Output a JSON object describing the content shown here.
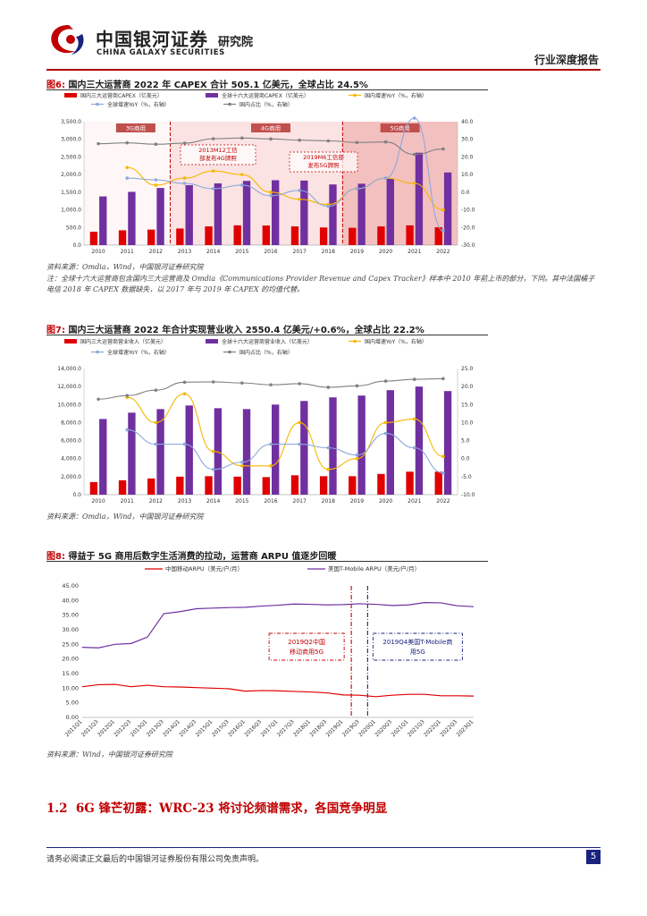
{
  "header": {
    "logo_cn": "中国银河证券",
    "logo_en": "CHINA GALAXY SECURITIES",
    "institute": "研究院",
    "report_type": "行业深度报告"
  },
  "colors": {
    "red": "#e00000",
    "purple": "#7030a0",
    "orange": "#f5b800",
    "blue": "#8fa8dc",
    "grey": "#808080",
    "brand_red": "#c00000",
    "navy": "#1a237e"
  },
  "fig6": {
    "prefix": "图6:",
    "title": "国内三大运营商 2022 年 CAPEX 合计 505.1 亿美元，全球占比 24.5%",
    "source": "资料来源：Omdia，Wind，中国银河证券研究院",
    "note": "注：全球十六大运营商包含国内三大运营商及 Omdia《Communications Provider Revenue and Capex Tracker》样本中 2010 年前上市的部分，下同。其中法国橘子电信 2018 年 CAPEX 数据缺失，以 2017 年与 2019 年 CAPEX 的均值代替。"
  },
  "fig7": {
    "prefix": "图7:",
    "title": "国内三大运营商 2022 年合计实现营业收入 2550.4 亿美元/+0.6%，全球占比 22.2%",
    "source": "资料来源：Omdia，Wind，中国银河证券研究院"
  },
  "fig8": {
    "prefix": "图8:",
    "title": "得益于 5G 商用后数字生活消费的拉动，运营商 ARPU 值逐步回暖",
    "source": "资料来源：Wind，中国银河证券研究院"
  },
  "section": {
    "number": "1.2",
    "title": "6G 锋芒初露：WRC-23 将讨论频谱需求，各国竞争明显"
  },
  "footer": {
    "disclaimer": "请务必阅读正文最后的中国银河证券股份有限公司免责声明。",
    "page": "5"
  },
  "chart_data": [
    {
      "id": "fig6",
      "type": "bar",
      "title": "国内三大运营商 2022 年 CAPEX 合计 505.1 亿美元，全球占比 24.5%",
      "categories": [
        "2010",
        "2011",
        "2012",
        "2013",
        "2014",
        "2015",
        "2016",
        "2017",
        "2018",
        "2019",
        "2020",
        "2021",
        "2022"
      ],
      "series": [
        {
          "name": "国内三大运营商CAPEX（亿美元）",
          "kind": "bar",
          "axis": "left",
          "color": "#e00000",
          "values": [
            380,
            420,
            440,
            470,
            530,
            560,
            555,
            530,
            500,
            490,
            530,
            560,
            505
          ]
        },
        {
          "name": "全球十六大运营商CAPEX（亿美元）",
          "kind": "bar",
          "axis": "left",
          "color": "#7030a0",
          "values": [
            1380,
            1510,
            1620,
            1700,
            1750,
            1820,
            1840,
            1830,
            1720,
            1740,
            1880,
            2620,
            2060
          ]
        },
        {
          "name": "国内增速YoY（%，右轴）",
          "kind": "line",
          "axis": "right",
          "color": "#f5b800",
          "values": [
            null,
            14,
            4,
            8,
            12,
            10,
            0,
            -4,
            -7,
            2,
            8,
            5,
            -10
          ]
        },
        {
          "name": "全球增速YoY（%，右轴）",
          "kind": "line",
          "axis": "right",
          "color": "#8fa8dc",
          "values": [
            null,
            8,
            7,
            5,
            2,
            4,
            -2,
            1,
            -8,
            2,
            8,
            42,
            -22
          ]
        },
        {
          "name": "国内占比（%，右轴）",
          "kind": "line",
          "axis": "right",
          "color": "#808080",
          "values": [
            27.5,
            28,
            27.2,
            27.8,
            30.3,
            30.7,
            30.2,
            29.5,
            29.1,
            28.2,
            28.5,
            21.4,
            24.5
          ]
        }
      ],
      "ylim_left": [
        0,
        3500
      ],
      "yticks_left": [
        "0.0",
        "500.0",
        "1,000.0",
        "1,500.0",
        "2,000.0",
        "2,500.0",
        "3,000.0",
        "3,500.0"
      ],
      "ylim_right": [
        -30,
        40
      ],
      "yticks_right": [
        "-30.0",
        "-20.0",
        "-10.0",
        "0.0",
        "10.0",
        "20.0",
        "30.0",
        "40.0"
      ],
      "eras": [
        {
          "label": "3G商用",
          "from": 0,
          "to": 3
        },
        {
          "label": "4G商用",
          "from": 3,
          "to": 9
        },
        {
          "label": "5G商用",
          "from": 9,
          "to": 12
        }
      ],
      "annotations": [
        "2013M12工信部发布4G牌照",
        "2019M6工信部发布5G牌照"
      ]
    },
    {
      "id": "fig7",
      "type": "bar",
      "title": "国内三大运营商 2022 年合计实现营业收入 2550.4 亿美元/+0.6%，全球占比 22.2%",
      "categories": [
        "2010",
        "2011",
        "2012",
        "2013",
        "2014",
        "2015",
        "2016",
        "2017",
        "2018",
        "2019",
        "2020",
        "2021",
        "2022"
      ],
      "series": [
        {
          "name": "国内三大运营商营业收入（亿美元）",
          "kind": "bar",
          "axis": "left",
          "color": "#e00000",
          "values": [
            1400,
            1600,
            1800,
            2000,
            2050,
            2000,
            1950,
            2150,
            2050,
            2050,
            2300,
            2550,
            2550
          ]
        },
        {
          "name": "全球十六大运营商营业收入（亿美元）",
          "kind": "bar",
          "axis": "left",
          "color": "#7030a0",
          "values": [
            8400,
            9100,
            9500,
            9900,
            9600,
            9500,
            10000,
            10400,
            10800,
            11000,
            11600,
            12000,
            11500
          ]
        },
        {
          "name": "国内增速YoY（%，右轴）",
          "kind": "line",
          "axis": "right",
          "color": "#f5b800",
          "values": [
            null,
            17,
            10,
            18,
            2,
            -2,
            -2,
            10,
            -3,
            0,
            10,
            11,
            0.6
          ]
        },
        {
          "name": "全球增速YoY（%，右轴）",
          "kind": "line",
          "axis": "right",
          "color": "#8fa8dc",
          "values": [
            null,
            8,
            4,
            4,
            -3,
            -1,
            4,
            4,
            3,
            1,
            7,
            3,
            -4
          ]
        },
        {
          "name": "国内占比（%，右轴）",
          "kind": "line",
          "axis": "right",
          "color": "#808080",
          "values": [
            16.5,
            17.5,
            19,
            21.2,
            21.3,
            21,
            20.5,
            20.8,
            19.8,
            20.2,
            21.5,
            22,
            22.2
          ]
        }
      ],
      "ylim_left": [
        0,
        14000
      ],
      "yticks_left": [
        "0.0",
        "2,000.0",
        "4,000.0",
        "6,000.0",
        "8,000.0",
        "10,000.0",
        "12,000.0",
        "14,000.0"
      ],
      "ylim_right": [
        -10,
        25
      ],
      "yticks_right": [
        "-10.0",
        "-5.0",
        "0.0",
        "5.0",
        "10.0",
        "15.0",
        "20.0",
        "25.0"
      ]
    },
    {
      "id": "fig8",
      "type": "line",
      "title": "得益于 5G 商用后数字生活消费的拉动，运营商 ARPU 值逐步回暖",
      "x": [
        "2011Q1",
        "2011Q3",
        "2012Q1",
        "2012Q3",
        "2013Q1",
        "2013Q3",
        "2014Q1",
        "2014Q3",
        "2015Q1",
        "2015Q3",
        "2016Q1",
        "2016Q3",
        "2017Q1",
        "2017Q3",
        "2018Q1",
        "2018Q3",
        "2019Q1",
        "2019Q3",
        "2020Q1",
        "2020Q3",
        "2021Q1",
        "2021Q3",
        "2022Q1",
        "2022Q3",
        "2023Q1"
      ],
      "series": [
        {
          "name": "中国移动ARPU（美元/户/月）",
          "color": "#e00000",
          "values": [
            10.5,
            11.2,
            11.3,
            10.5,
            11,
            10.5,
            10.4,
            10.2,
            10,
            9.8,
            9,
            9.2,
            9.1,
            8.9,
            8.7,
            8.4,
            7.7,
            7.6,
            7.1,
            7.6,
            7.9,
            7.9,
            7.4,
            7.4,
            7.3
          ]
        },
        {
          "name": "美国T-Mobile ARPU（美元/户/月）",
          "color": "#7030a0",
          "values": [
            24,
            23.8,
            25,
            25.3,
            27.5,
            35.5,
            36.2,
            37.2,
            37.4,
            37.6,
            37.7,
            38.1,
            38.4,
            38.8,
            38.7,
            38.5,
            38.6,
            38.9,
            38.7,
            38.3,
            38.5,
            39.3,
            39.2,
            38.2,
            37.9
          ]
        }
      ],
      "ylim": [
        0,
        45
      ],
      "yticks": [
        "0.00",
        "5.00",
        "10.00",
        "15.00",
        "20.00",
        "25.00",
        "30.00",
        "35.00",
        "40.00",
        "45.00"
      ],
      "annotations": [
        "2019Q2中国移动商用5G",
        "2019Q4美国T-Mobile商用5G"
      ]
    }
  ]
}
